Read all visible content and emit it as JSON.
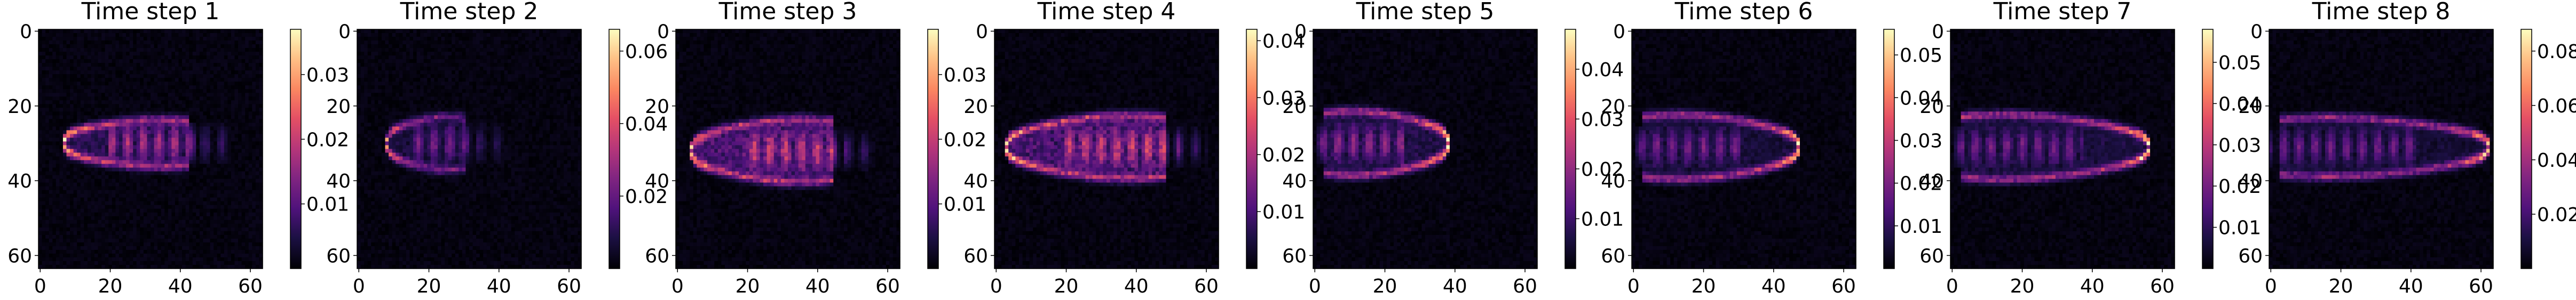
{
  "chart_data": [
    {
      "type": "heatmap",
      "title": "Time step 1",
      "xticks": [
        0,
        20,
        40,
        60
      ],
      "yticks": [
        0,
        20,
        40,
        60
      ],
      "xlim": [
        0,
        63
      ],
      "ylim": [
        63,
        0
      ],
      "colormap": "magma",
      "grid": false,
      "colorbar": {
        "ticks": [
          0.01,
          0.02,
          0.03
        ],
        "range": [
          0,
          0.037
        ]
      },
      "plume": {
        "tip_x": 7,
        "tail_x": 42,
        "center_y": 30,
        "half_width": 7,
        "peak": 0.037,
        "interior": 0.18,
        "ring": 0.7,
        "stripes": 0.35
      }
    },
    {
      "type": "heatmap",
      "title": "Time step 2",
      "xticks": [
        0,
        20,
        40,
        60
      ],
      "yticks": [
        0,
        20,
        40,
        60
      ],
      "xlim": [
        0,
        63
      ],
      "ylim": [
        63,
        0
      ],
      "colormap": "magma",
      "grid": false,
      "colorbar": {
        "ticks": [
          0.02,
          0.04,
          0.06
        ],
        "range": [
          0,
          0.066
        ]
      },
      "plume": {
        "tip_x": 8,
        "tail_x": 30,
        "center_y": 30,
        "half_width": 8,
        "peak": 0.066,
        "interior": 0.12,
        "ring": 0.5,
        "stripes": 0.25
      }
    },
    {
      "type": "heatmap",
      "title": "Time step 3",
      "xticks": [
        0,
        20,
        40,
        60
      ],
      "yticks": [
        0,
        20,
        40,
        60
      ],
      "xlim": [
        0,
        63
      ],
      "ylim": [
        63,
        0
      ],
      "colormap": "magma",
      "grid": false,
      "colorbar": {
        "ticks": [
          0.01,
          0.02,
          0.03
        ],
        "range": [
          0,
          0.037
        ]
      },
      "plume": {
        "tip_x": 4,
        "tail_x": 44,
        "center_y": 32,
        "half_width": 10,
        "peak": 0.037,
        "interior": 0.3,
        "ring": 0.6,
        "stripes": 0.35
      }
    },
    {
      "type": "heatmap",
      "title": "Time step 4",
      "xticks": [
        0,
        20,
        40,
        60
      ],
      "yticks": [
        0,
        20,
        40,
        60
      ],
      "xlim": [
        0,
        63
      ],
      "ylim": [
        63,
        0
      ],
      "colormap": "magma",
      "grid": false,
      "colorbar": {
        "ticks": [
          0.01,
          0.02,
          0.03,
          0.04
        ],
        "range": [
          0,
          0.042
        ]
      },
      "plume": {
        "tip_x": 3,
        "tail_x": 48,
        "center_y": 31,
        "half_width": 10,
        "peak": 0.042,
        "interior": 0.3,
        "ring": 0.65,
        "stripes": 0.35
      }
    },
    {
      "type": "heatmap",
      "title": "Time step 5",
      "xticks": [
        0,
        20,
        40,
        60
      ],
      "yticks": [
        0,
        20,
        40,
        60
      ],
      "xlim": [
        0,
        63
      ],
      "ylim": [
        63,
        0
      ],
      "colormap": "magma",
      "grid": false,
      "colorbar": {
        "ticks": [
          0.01,
          0.02,
          0.03,
          0.04
        ],
        "range": [
          0,
          0.048
        ]
      },
      "plume": {
        "tip_x": 38,
        "tail_x": 3,
        "center_y": 30,
        "half_width": 10,
        "peak": 0.048,
        "interior": 0.15,
        "ring": 0.75,
        "stripes": 0.3
      }
    },
    {
      "type": "heatmap",
      "title": "Time step 6",
      "xticks": [
        0,
        20,
        40,
        60
      ],
      "yticks": [
        0,
        20,
        40,
        60
      ],
      "xlim": [
        0,
        63
      ],
      "ylim": [
        63,
        0
      ],
      "colormap": "magma",
      "grid": false,
      "colorbar": {
        "ticks": [
          0.01,
          0.02,
          0.03,
          0.04,
          0.05
        ],
        "range": [
          0,
          0.056
        ]
      },
      "plume": {
        "tip_x": 47,
        "tail_x": 3,
        "center_y": 31,
        "half_width": 10,
        "peak": 0.056,
        "interior": 0.12,
        "ring": 0.75,
        "stripes": 0.25
      }
    },
    {
      "type": "heatmap",
      "title": "Time step 7",
      "xticks": [
        0,
        20,
        40,
        60
      ],
      "yticks": [
        0,
        20,
        40,
        60
      ],
      "xlim": [
        0,
        63
      ],
      "ylim": [
        63,
        0
      ],
      "colormap": "magma",
      "grid": false,
      "colorbar": {
        "ticks": [
          0.01,
          0.02,
          0.03,
          0.04,
          0.05
        ],
        "range": [
          0,
          0.058
        ]
      },
      "plume": {
        "tip_x": 56,
        "tail_x": 3,
        "center_y": 31,
        "half_width": 10,
        "peak": 0.058,
        "interior": 0.12,
        "ring": 0.75,
        "stripes": 0.25
      }
    },
    {
      "type": "heatmap",
      "title": "Time step 8",
      "xticks": [
        0,
        20,
        40,
        60
      ],
      "yticks": [
        0,
        20,
        40,
        60
      ],
      "xlim": [
        0,
        63
      ],
      "ylim": [
        63,
        0
      ],
      "colormap": "magma",
      "grid": false,
      "colorbar": {
        "ticks": [
          0.02,
          0.04,
          0.06,
          0.08
        ],
        "range": [
          0,
          0.088
        ]
      },
      "plume": {
        "tip_x": 62,
        "tail_x": 3,
        "center_y": 31,
        "half_width": 9,
        "peak": 0.088,
        "interior": 0.1,
        "ring": 0.7,
        "stripes": 0.25
      }
    }
  ]
}
